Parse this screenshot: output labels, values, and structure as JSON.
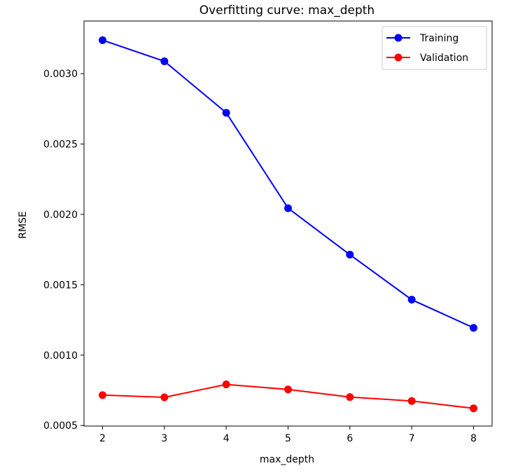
{
  "chart_data": {
    "type": "line",
    "title": "Overfitting curve: max_depth",
    "xlabel": "max_depth",
    "ylabel": "RMSE",
    "x": [
      2,
      3,
      4,
      5,
      6,
      7,
      8
    ],
    "x_ticks": [
      "2",
      "3",
      "4",
      "5",
      "6",
      "7",
      "8"
    ],
    "y_ticks": [
      {
        "value": 0.0005,
        "label": "0.0005"
      },
      {
        "value": 0.001,
        "label": "0.0010"
      },
      {
        "value": 0.0015,
        "label": "0.0015"
      },
      {
        "value": 0.002,
        "label": "0.0020"
      },
      {
        "value": 0.0025,
        "label": "0.0025"
      },
      {
        "value": 0.003,
        "label": "0.0030"
      }
    ],
    "xlim": [
      1.7,
      8.3
    ],
    "ylim": [
      0.000496,
      0.003374
    ],
    "grid": false,
    "legend_position": "top-right",
    "series": [
      {
        "name": "Training",
        "color": "#0000ff",
        "marker": "circle",
        "values": [
          0.003238,
          0.003088,
          0.002722,
          0.002044,
          0.001714,
          0.001394,
          0.001194
        ]
      },
      {
        "name": "Validation",
        "color": "#ff0000",
        "marker": "circle",
        "values": [
          0.000716,
          0.0007,
          0.000792,
          0.000756,
          0.000702,
          0.000674,
          0.000622
        ]
      }
    ]
  }
}
